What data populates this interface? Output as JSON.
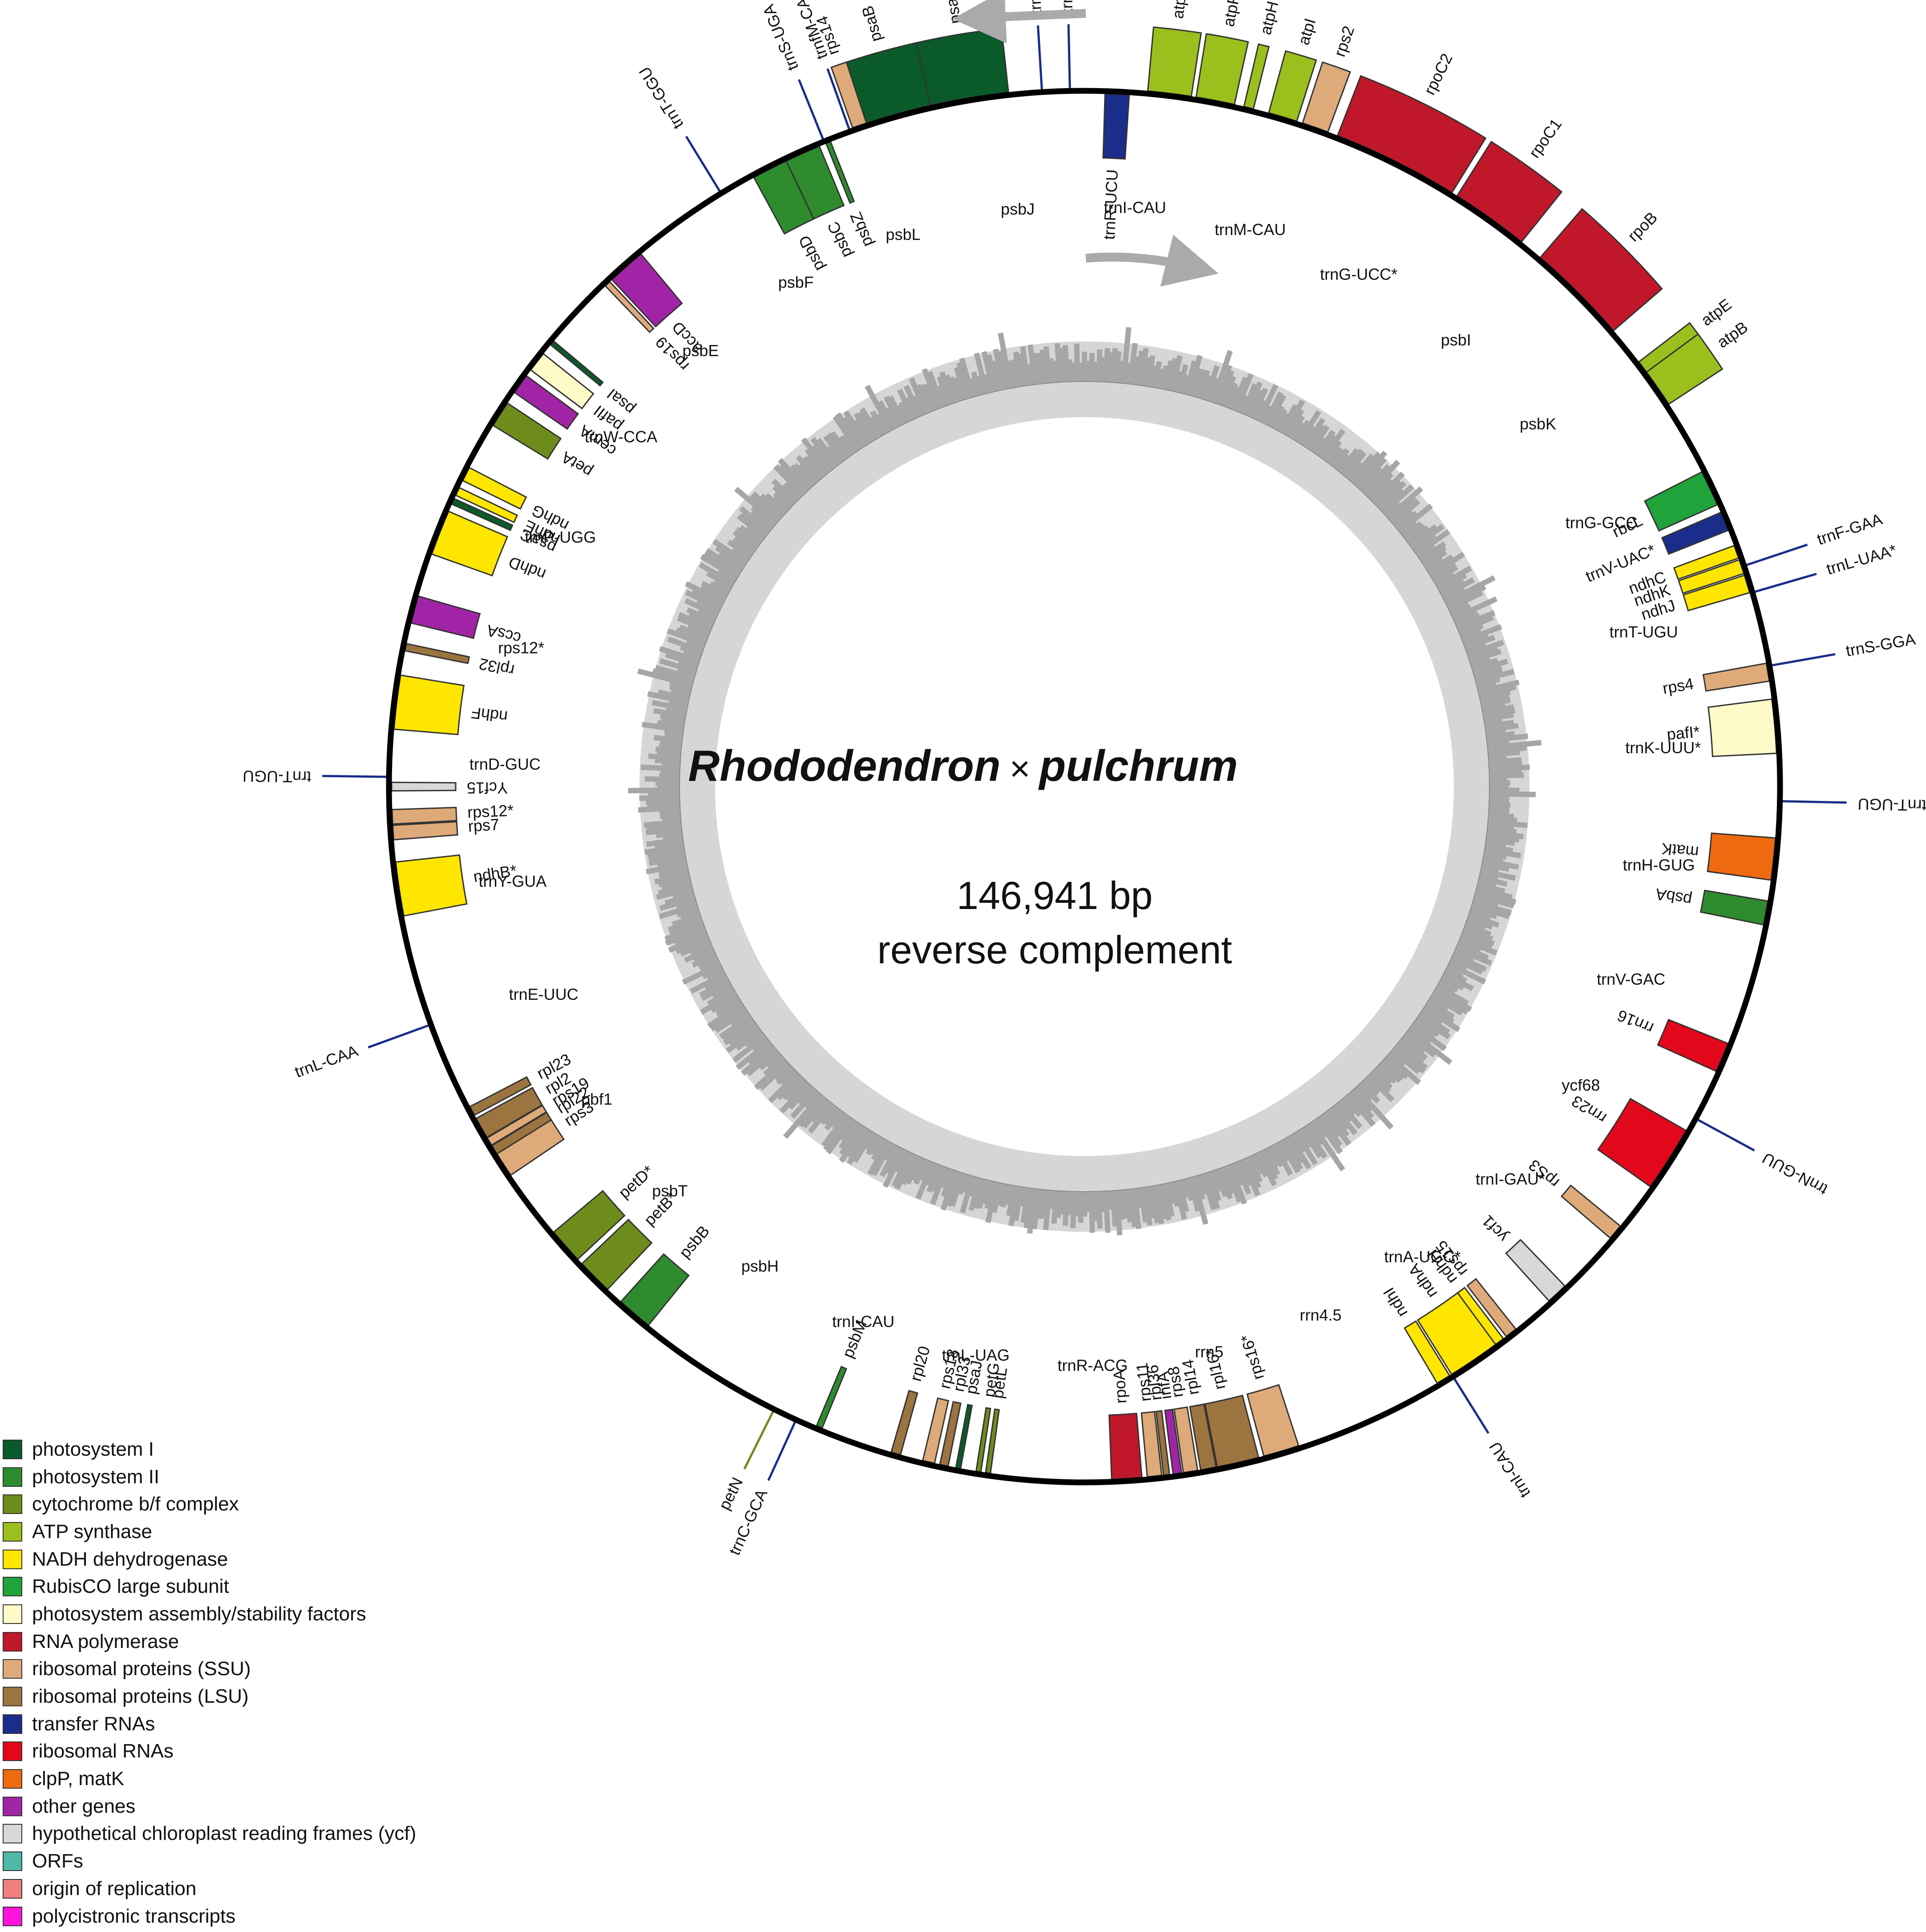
{
  "title": {
    "part1": "Rhododendron",
    "times": "×",
    "part2": "pulchrum"
  },
  "genome_size": "146,941 bp",
  "note": "reverse complement",
  "legend": [
    {
      "label": "photosystem I",
      "color": "#0a5a2a"
    },
    {
      "label": "photosystem II",
      "color": "#2e8b2e"
    },
    {
      "label": "cytochrome b/f complex",
      "color": "#6e8c1c"
    },
    {
      "label": "ATP synthase",
      "color": "#9bbf1c"
    },
    {
      "label": "NADH dehydrogenase",
      "color": "#ffe600"
    },
    {
      "label": "RubisCO large subunit",
      "color": "#1fa33a"
    },
    {
      "label": "photosystem assembly/stability factors",
      "color": "#fffbc8"
    },
    {
      "label": "RNA polymerase",
      "color": "#c0182a"
    },
    {
      "label": "ribosomal proteins (SSU)",
      "color": "#deaa7a"
    },
    {
      "label": "ribosomal proteins (LSU)",
      "color": "#9c7440"
    },
    {
      "label": "transfer RNAs",
      "color": "#1a2d8a"
    },
    {
      "label": "ribosomal RNAs",
      "color": "#e3071c"
    },
    {
      "label": "clpP, matK",
      "color": "#ee6a10"
    },
    {
      "label": "other genes",
      "color": "#a224a6"
    },
    {
      "label": "hypothetical chloroplast reading frames (ycf)",
      "color": "#d8d8d8"
    },
    {
      "label": "ORFs",
      "color": "#4fb8a8"
    },
    {
      "label": "origin of replication",
      "color": "#f08080"
    },
    {
      "label": "polycistronic transcripts",
      "color": "#ff14dc"
    }
  ],
  "genes_outer": [
    {
      "name": "atpA",
      "angle": 7,
      "span": 3.6,
      "cat": 3
    },
    {
      "name": "atpF*",
      "angle": 10.8,
      "span": 3.2,
      "cat": 3
    },
    {
      "name": "atpH",
      "angle": 13.6,
      "span": 0.8,
      "cat": 3
    },
    {
      "name": "atpI",
      "angle": 16.5,
      "span": 2.4,
      "cat": 3
    },
    {
      "name": "rps2",
      "angle": 19.3,
      "span": 2.2,
      "cat": 8
    },
    {
      "name": "rpoC2",
      "angle": 26.5,
      "span": 10.5,
      "cat": 7
    },
    {
      "name": "rpoC1",
      "angle": 35.5,
      "span": 6.5,
      "cat": 7
    },
    {
      "name": "rpoB",
      "angle": 45,
      "span": 8.5,
      "cat": 7
    },
    {
      "name": "atpE",
      "angle": 53.2,
      "span": 1.3,
      "cat": 3
    },
    {
      "name": "atpB",
      "angle": 55.2,
      "span": 3.2,
      "cat": 3
    },
    {
      "name": "psaA",
      "angle": -9.5,
      "span": 6.5,
      "cat": 0
    },
    {
      "name": "psaB",
      "angle": -15.5,
      "span": 5.5,
      "cat": 0
    },
    {
      "name": "rps14",
      "angle": -18.8,
      "span": 1.2,
      "cat": 8
    }
  ],
  "genes_inner": [
    {
      "name": "rbcL",
      "angle": 64.5,
      "span": 3,
      "cat": 5
    },
    {
      "name": "ndhJ",
      "angle": 73,
      "span": 1.5,
      "cat": 4
    },
    {
      "name": "ndhK",
      "angle": 71.5,
      "span": 1.2,
      "cat": 4
    },
    {
      "name": "ndhC",
      "angle": 70.2,
      "span": 1.1,
      "cat": 4
    },
    {
      "name": "trnV-UAC*",
      "angle": 67.5,
      "span": 1.6,
      "cat": 10
    },
    {
      "name": "rps4",
      "angle": 80.5,
      "span": 1.5,
      "cat": 8
    },
    {
      "name": "pafI*",
      "angle": 85,
      "span": 4.5,
      "cat": 6
    },
    {
      "name": "matK",
      "angle": 96,
      "span": 3.5,
      "cat": 12
    },
    {
      "name": "psbA",
      "angle": 100.5,
      "span": 2,
      "cat": 1
    },
    {
      "name": "rrn16",
      "angle": 113,
      "span": 2.5,
      "cat": 11
    },
    {
      "name": "rrn23",
      "angle": 122.5,
      "span": 5.5,
      "cat": 11
    },
    {
      "name": "rpS3",
      "angle": 130,
      "span": 1.3,
      "cat": 8
    },
    {
      "name": "ycf1",
      "angle": 137,
      "span": 1.8,
      "cat": 14
    },
    {
      "name": "ndhA",
      "angle": 145.5,
      "span": 5,
      "cat": 4
    },
    {
      "name": "ndhI",
      "angle": 148.8,
      "span": 1.2,
      "cat": 4
    },
    {
      "name": "rps15",
      "angle": 142,
      "span": 1,
      "cat": 8
    },
    {
      "name": "ndhH",
      "angle": 143.2,
      "span": 0.8,
      "cat": 4
    },
    {
      "name": "rps16*",
      "angle": 163.5,
      "span": 3,
      "cat": 8
    },
    {
      "name": "rpl16*",
      "angle": 167.2,
      "span": 3.5,
      "cat": 9
    },
    {
      "name": "rpl14",
      "angle": 169.7,
      "span": 1.3,
      "cat": 9
    },
    {
      "name": "rps8",
      "angle": 171.2,
      "span": 1.2,
      "cat": 8
    },
    {
      "name": "infA",
      "angle": 172.3,
      "span": 0.7,
      "cat": 13
    },
    {
      "name": "rpl36",
      "angle": 173.2,
      "span": 0.5,
      "cat": 9
    },
    {
      "name": "rps11",
      "angle": 174.2,
      "span": 1.2,
      "cat": 8
    },
    {
      "name": "rpoA",
      "angle": 176.5,
      "span": 2.5,
      "cat": 7
    },
    {
      "name": "petL",
      "angle": 188,
      "span": 0.4,
      "cat": 2
    },
    {
      "name": "petG",
      "angle": 188.8,
      "span": 0.4,
      "cat": 2
    },
    {
      "name": "psaJ",
      "angle": 190.5,
      "span": 0.4,
      "cat": 0
    },
    {
      "name": "rpl33",
      "angle": 191.7,
      "span": 0.7,
      "cat": 9
    },
    {
      "name": "rps18",
      "angle": 193,
      "span": 1,
      "cat": 8
    },
    {
      "name": "psbB",
      "angle": 220.5,
      "span": 3,
      "cat": 1
    },
    {
      "name": "petB*",
      "angle": 225,
      "span": 3,
      "cat": 2
    },
    {
      "name": "petD*",
      "angle": 228.5,
      "span": 3,
      "cat": 2
    },
    {
      "name": "rps3",
      "angle": 237,
      "span": 2.2,
      "cat": 8
    },
    {
      "name": "rpl22",
      "angle": 238.4,
      "span": 0.8,
      "cat": 9
    },
    {
      "name": "rps19",
      "angle": 239.2,
      "span": 0.7,
      "cat": 8
    },
    {
      "name": "rpl2",
      "angle": 240.5,
      "span": 1.8,
      "cat": 9
    },
    {
      "name": "rpl23",
      "angle": 242.1,
      "span": 0.8,
      "cat": 9
    },
    {
      "name": "ndhB*",
      "angle": 261.5,
      "span": 4.5,
      "cat": 4
    },
    {
      "name": "rps7",
      "angle": 266.2,
      "span": 1.2,
      "cat": 8
    },
    {
      "name": "rps12*",
      "angle": 267.5,
      "span": 1.2,
      "cat": 8
    },
    {
      "name": "Ycf15",
      "angle": 270,
      "span": 0.7,
      "cat": 14
    },
    {
      "name": "ndhF",
      "angle": 277,
      "span": 4.5,
      "cat": 4
    },
    {
      "name": "rpl32",
      "angle": 281.6,
      "span": 0.6,
      "cat": 9
    },
    {
      "name": "ccsA",
      "angle": 284.8,
      "span": 2.3,
      "cat": 13
    },
    {
      "name": "ndhD",
      "angle": 291.5,
      "span": 3.8,
      "cat": 4
    },
    {
      "name": "psaC",
      "angle": 294.3,
      "span": 0.5,
      "cat": 0
    },
    {
      "name": "ndhE",
      "angle": 295.2,
      "span": 0.7,
      "cat": 4
    },
    {
      "name": "ndhG",
      "angle": 296.8,
      "span": 1.2,
      "cat": 4
    },
    {
      "name": "petA",
      "angle": 302.5,
      "span": 2.2,
      "cat": 2
    },
    {
      "name": "cemA",
      "angle": 305.5,
      "span": 1.7,
      "cat": 13
    },
    {
      "name": "pafII",
      "angle": 307.8,
      "span": 1.7,
      "cat": 6
    },
    {
      "name": "psaI",
      "angle": 309.8,
      "span": 0.4,
      "cat": 0
    },
    {
      "name": "rps19",
      "angle": 316.5,
      "span": 0.5,
      "cat": 8
    },
    {
      "name": "accD",
      "angle": 318.6,
      "span": 3.2,
      "cat": 13
    },
    {
      "name": "psbD",
      "angle": 333,
      "span": 3,
      "cat": 1
    },
    {
      "name": "psbC",
      "angle": 336,
      "span": 3,
      "cat": 1
    },
    {
      "name": "psbZ",
      "angle": 338.3,
      "span": 0.4,
      "cat": 1
    },
    {
      "name": "psbM",
      "angle": 202.5,
      "span": 0.5,
      "cat": 1
    },
    {
      "name": "rpl20",
      "angle": 195.8,
      "span": 0.8,
      "cat": 9
    },
    {
      "name": "trnR-UCU",
      "angle": 2.7,
      "span": 2,
      "cat": 10
    }
  ],
  "trna_outer": [
    {
      "name": "trnQ-UUG",
      "angle": -3.5,
      "cat": 10
    },
    {
      "name": "trnS-GCU",
      "angle": -1.2,
      "cat": 10
    },
    {
      "name": "trnfM-CAU",
      "angle": -19.7,
      "cat": 10
    },
    {
      "name": "trnS-UGA",
      "angle": -22,
      "cat": 10
    },
    {
      "name": "trnT-GGU",
      "angle": -31.5,
      "cat": 10
    },
    {
      "name": "trnF-GAA",
      "angle": 71.5,
      "cat": 10
    },
    {
      "name": "trnL-UAA*",
      "angle": 73.8,
      "cat": 10
    },
    {
      "name": "trnS-GGA",
      "angle": 80,
      "cat": 10
    },
    {
      "name": "trnT-UGU",
      "angle": 91.2,
      "cat": 10
    },
    {
      "name": "trnN-GUU",
      "angle": 118.5,
      "cat": 10
    },
    {
      "name": "trnI-CAU",
      "angle": 148,
      "cat": 10
    },
    {
      "name": "trnC-GCA",
      "angle": 204.5,
      "cat": 10
    },
    {
      "name": "petN",
      "angle": 206.5,
      "cat": 2
    },
    {
      "name": "trnL-CAA",
      "angle": 250,
      "cat": 10
    },
    {
      "name": "trnT-UGU",
      "angle": 270.8,
      "cat": 10
    }
  ],
  "misc_labels": [
    {
      "name": "trnI-CAU",
      "cat": 10
    },
    {
      "name": "trnM-CAU",
      "cat": 10
    },
    {
      "name": "trnG-UCC*",
      "cat": 10
    },
    {
      "name": "psbI",
      "cat": 1
    },
    {
      "name": "psbK",
      "cat": 1
    },
    {
      "name": "trnG-GCC",
      "cat": 10
    },
    {
      "name": "trnT-UGU",
      "cat": 10
    },
    {
      "name": "trnK-UUU*",
      "cat": 10
    },
    {
      "name": "trnH-GUG",
      "cat": 10
    },
    {
      "name": "trnV-GAC",
      "cat": 10
    },
    {
      "name": "ycf68",
      "cat": 14
    },
    {
      "name": "trnI-GAU*",
      "cat": 10
    },
    {
      "name": "trnA-UGC*",
      "cat": 10
    },
    {
      "name": "rrn4.5",
      "cat": 11
    },
    {
      "name": "rrn5",
      "cat": 11
    },
    {
      "name": "trnR-ACG",
      "cat": 10
    },
    {
      "name": "trnL-UAG",
      "cat": 10
    },
    {
      "name": "trnI-CAU",
      "cat": 10
    },
    {
      "name": "psbH",
      "cat": 1
    },
    {
      "name": "psbT",
      "cat": 1
    },
    {
      "name": "pbf1",
      "cat": 1
    },
    {
      "name": "trnE-UUC",
      "cat": 10
    },
    {
      "name": "trnY-GUA",
      "cat": 10
    },
    {
      "name": "trnD-GUC",
      "cat": 10
    },
    {
      "name": "rps12*",
      "cat": 8
    },
    {
      "name": "trnP-UGG",
      "cat": 10
    },
    {
      "name": "trnW-CCA",
      "cat": 10
    },
    {
      "name": "psbE",
      "cat": 1
    },
    {
      "name": "psbF",
      "cat": 1
    },
    {
      "name": "psbL",
      "cat": 1
    },
    {
      "name": "psbJ",
      "cat": 1
    }
  ]
}
